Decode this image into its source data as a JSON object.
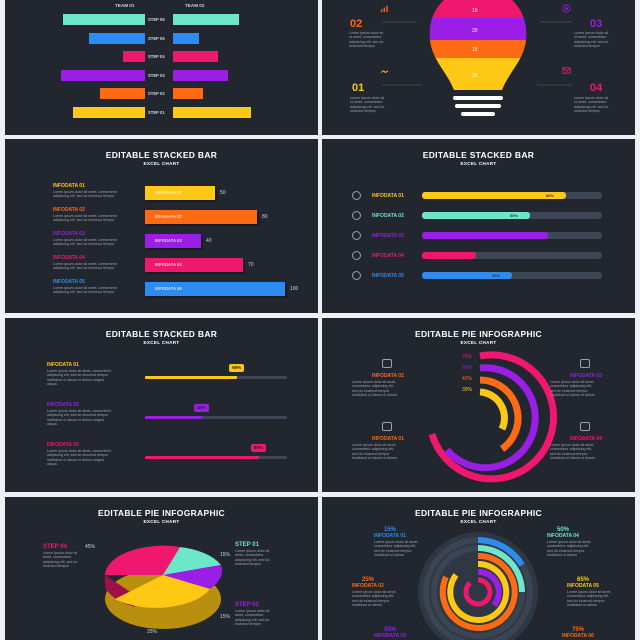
{
  "colors": {
    "teal": "#6ee6c8",
    "blue": "#2e8cf0",
    "pink": "#f0186e",
    "purple": "#9b1ee6",
    "orange": "#ff6a14",
    "yellow": "#ffc814",
    "bg": "#22272f",
    "track": "#3c4655"
  },
  "p1": {
    "team1": "TEAM 01",
    "team2": "TEAM 02",
    "steps": [
      "STEP 06",
      "STEP 05",
      "STEP 04",
      "STEP 03",
      "STEP 02",
      "STEP 01"
    ],
    "left_values": [
      0.82,
      0.56,
      0.22,
      0.84,
      0.45,
      0.72
    ],
    "right_values": [
      0.6,
      0.24,
      0.41,
      0.5,
      0.27,
      0.71
    ]
  },
  "p2": {
    "bulb_values": [
      "15",
      "20",
      "15",
      "35"
    ],
    "items": [
      {
        "num": "02",
        "color": "#ff6a14",
        "icon": "chart-icon"
      },
      {
        "num": "03",
        "color": "#9b1ee6",
        "icon": "target-icon"
      },
      {
        "num": "01",
        "color": "#ffc814",
        "icon": "handshake-icon"
      },
      {
        "num": "04",
        "color": "#f0186e",
        "icon": "mail-icon"
      }
    ],
    "desc": [
      "Lorem ipsum dolor sit",
      "ut amet, consectetur",
      "adipiscing elit, sed do",
      "eiusmod tempor"
    ]
  },
  "p3": {
    "title": "EDITABLE STACKED BAR",
    "subtitle": "EXCEL CHART",
    "items": [
      {
        "label": "INFODATA 01",
        "bar": "INFODATA 01",
        "value": "50",
        "v": 50
      },
      {
        "label": "INFODATA 02",
        "bar": "INFODATA 02",
        "value": "80",
        "v": 80
      },
      {
        "label": "INFODATA 03",
        "bar": "INFODATA 03",
        "value": "40",
        "v": 40
      },
      {
        "label": "INFODATA 04",
        "bar": "INFODATA 04",
        "value": "70",
        "v": 70
      },
      {
        "label": "INFODATA 05",
        "bar": "INFODATA 05",
        "value": "100",
        "v": 100
      }
    ],
    "desc": [
      "Lorem ipsum dolor sit amet, consectetur",
      "adipiscing elit, sed do eiusmod tempor"
    ]
  },
  "p4": {
    "title": "EDITABLE STACKED BAR",
    "subtitle": "EXCEL CHART",
    "items": [
      {
        "label": "INFODATA 01",
        "pct": "80%",
        "v": 0.8,
        "icon": "brain-icon"
      },
      {
        "label": "INFODATA 02",
        "pct": "60%",
        "v": 0.6,
        "icon": "handshake-icon"
      },
      {
        "label": "INFODATA 03",
        "pct": "",
        "v": 0.7,
        "icon": "bulb-icon"
      },
      {
        "label": "INFODATA 04",
        "pct": "",
        "v": 0.3,
        "icon": "chart-icon"
      },
      {
        "label": "INFODATA 05",
        "pct": "50%",
        "v": 0.5,
        "icon": "mail-icon"
      }
    ]
  },
  "p5": {
    "title": "EDITABLE STACKED BAR",
    "subtitle": "EXCEL CHART",
    "items": [
      {
        "label": "INFODATA 01",
        "pct": "65%",
        "v": 0.65
      },
      {
        "label": "INFODATA 02",
        "pct": "40%",
        "v": 0.4
      },
      {
        "label": "INFODATA 03",
        "pct": "80%",
        "v": 0.8
      }
    ],
    "desc": [
      "Lorem ipsum dolor sit amet, consectetur",
      "adipiscing elit, sed do eiusmod tempor",
      "incididunt ut labore et dolore magna",
      "aliqua."
    ]
  },
  "p6": {
    "title": "EDITABLE PIE INFOGRAPHIC",
    "subtitle": "EXCEL CHART",
    "pcts": [
      "75%",
      "60%",
      "40%",
      "30%"
    ],
    "items": [
      {
        "label": "INFODATA 02",
        "icon": "handshake-icon"
      },
      {
        "label": "INFODATA 03",
        "icon": "brain-icon"
      },
      {
        "label": "INFODATA 01",
        "icon": "mail-icon"
      },
      {
        "label": "INFODATA 04",
        "icon": "chart-icon"
      }
    ],
    "desc": [
      "Lorem ipsum dolor sit amet,",
      "consectetur adipiscing elit,",
      "sed do eiusmod tempor",
      "incididunt ut labore et dolore"
    ]
  },
  "p7": {
    "title": "EDITABLE PIE INFOGRAPHIC",
    "subtitle": "EXCEL CHART",
    "steps": [
      {
        "label": "STEP 04",
        "pct": "45%",
        "color": "#f0186e"
      },
      {
        "label": "STEP 01",
        "pct": "15%",
        "color": "#6ee6c8"
      },
      {
        "label": "STEP 02",
        "pct": "15%",
        "color": "#9b1ee6"
      },
      {
        "label": "",
        "pct": "25%",
        "color": "#ffc814"
      }
    ],
    "desc": [
      "Lorem ipsum dolor sit",
      "amet, consectetur",
      "adipiscing elit, sed do",
      "eiusmod tempor"
    ]
  },
  "p8": {
    "title": "EDITABLE PIE INFOGRAPHIC",
    "subtitle": "EXCEL CHART",
    "items": [
      {
        "pct": "15%",
        "label": "INFODATA 01",
        "color": "#2e8cf0"
      },
      {
        "pct": "50%",
        "label": "INFODATA 04",
        "color": "#6ee6c8"
      },
      {
        "pct": "25%",
        "label": "INFODATA 02",
        "color": "#ff6a14"
      },
      {
        "pct": "65%",
        "label": "INFODATA 05",
        "color": "#ffc814"
      },
      {
        "pct": "35%",
        "label": "INFODATA 03",
        "color": "#9b1ee6"
      },
      {
        "pct": "75%",
        "label": "INFODATA 06",
        "color": "#ff6a14"
      }
    ],
    "desc": [
      "Lorem ipsum dolor sit amet,",
      "consectetur adipiscing elit,",
      "sed do eiusmod tempor",
      "incididunt ut labore"
    ]
  }
}
